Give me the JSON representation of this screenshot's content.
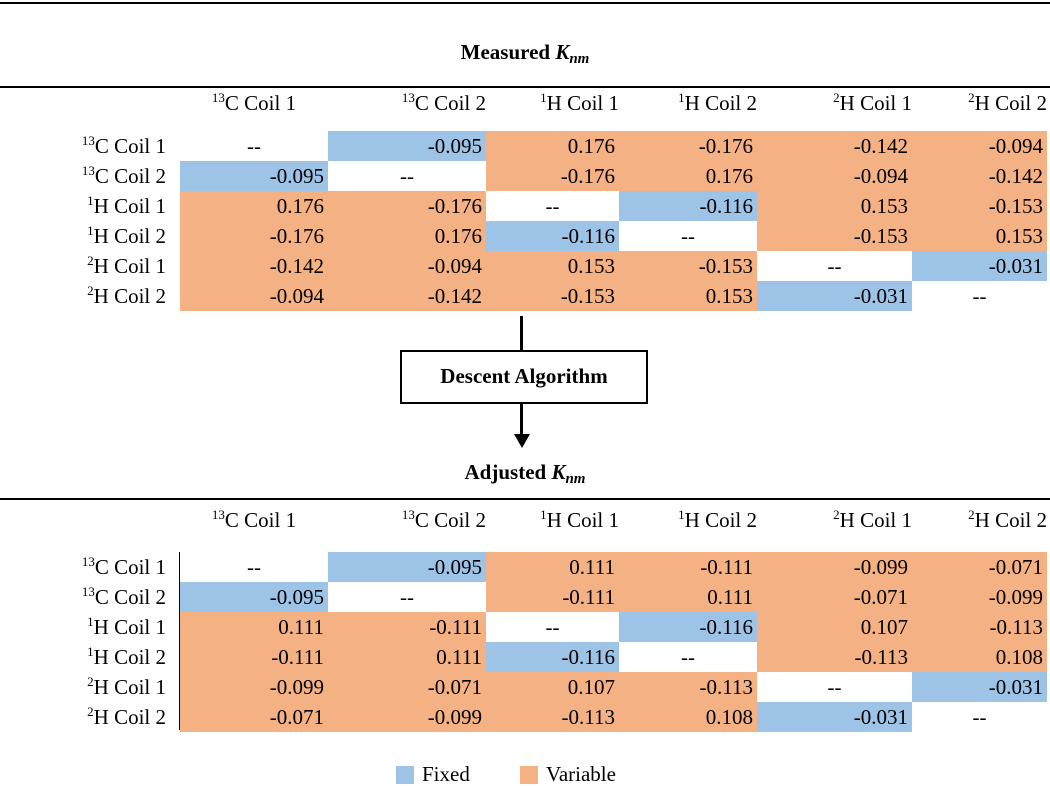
{
  "top_title": {
    "prefix": "Measured",
    "k": "K",
    "sub": "nm"
  },
  "bottom_title": {
    "prefix": "Adjusted",
    "k": "K",
    "sub": "nm"
  },
  "algorithm_label": "Descent Algorithm",
  "headers": [
    {
      "sup": "13",
      "text": "C Coil 1"
    },
    {
      "sup": "13",
      "text": "C Coil 2"
    },
    {
      "sup": "1",
      "text": "H Coil 1"
    },
    {
      "sup": "1",
      "text": "H Coil 2"
    },
    {
      "sup": "2",
      "text": "H Coil 1"
    },
    {
      "sup": "2",
      "text": "H Coil 2"
    }
  ],
  "cell_types": [
    [
      "diag",
      "fixed",
      "variable",
      "variable",
      "variable",
      "variable"
    ],
    [
      "fixed",
      "diag",
      "variable",
      "variable",
      "variable",
      "variable"
    ],
    [
      "variable",
      "variable",
      "diag",
      "fixed",
      "variable",
      "variable"
    ],
    [
      "variable",
      "variable",
      "fixed",
      "diag",
      "variable",
      "variable"
    ],
    [
      "variable",
      "variable",
      "variable",
      "variable",
      "diag",
      "fixed"
    ],
    [
      "variable",
      "variable",
      "variable",
      "variable",
      "fixed",
      "diag"
    ]
  ],
  "measured": [
    [
      "--",
      "-0.095",
      "0.176",
      "-0.176",
      "-0.142",
      "-0.094"
    ],
    [
      "-0.095",
      "--",
      "-0.176",
      "0.176",
      "-0.094",
      "-0.142"
    ],
    [
      "0.176",
      "-0.176",
      "--",
      "-0.116",
      "0.153",
      "-0.153"
    ],
    [
      "-0.176",
      "0.176",
      "-0.116",
      "--",
      "-0.153",
      "0.153"
    ],
    [
      "-0.142",
      "-0.094",
      "0.153",
      "-0.153",
      "--",
      "-0.031"
    ],
    [
      "-0.094",
      "-0.142",
      "-0.153",
      "0.153",
      "-0.031",
      "--"
    ]
  ],
  "adjusted": [
    [
      "--",
      "-0.095",
      "0.111",
      "-0.111",
      "-0.099",
      "-0.071"
    ],
    [
      "-0.095",
      "--",
      "-0.111",
      "0.111",
      "-0.071",
      "-0.099"
    ],
    [
      "0.111",
      "-0.111",
      "--",
      "-0.116",
      "0.107",
      "-0.113"
    ],
    [
      "-0.111",
      "0.111",
      "-0.116",
      "--",
      "-0.113",
      "0.108"
    ],
    [
      "-0.099",
      "-0.071",
      "0.107",
      "-0.113",
      "--",
      "-0.031"
    ],
    [
      "-0.071",
      "-0.099",
      "-0.113",
      "0.108",
      "-0.031",
      "--"
    ]
  ],
  "legend": {
    "fixed_label": "Fixed",
    "variable_label": "Variable",
    "fixed_color": "#9dc3e6",
    "variable_color": "#f4b183"
  }
}
